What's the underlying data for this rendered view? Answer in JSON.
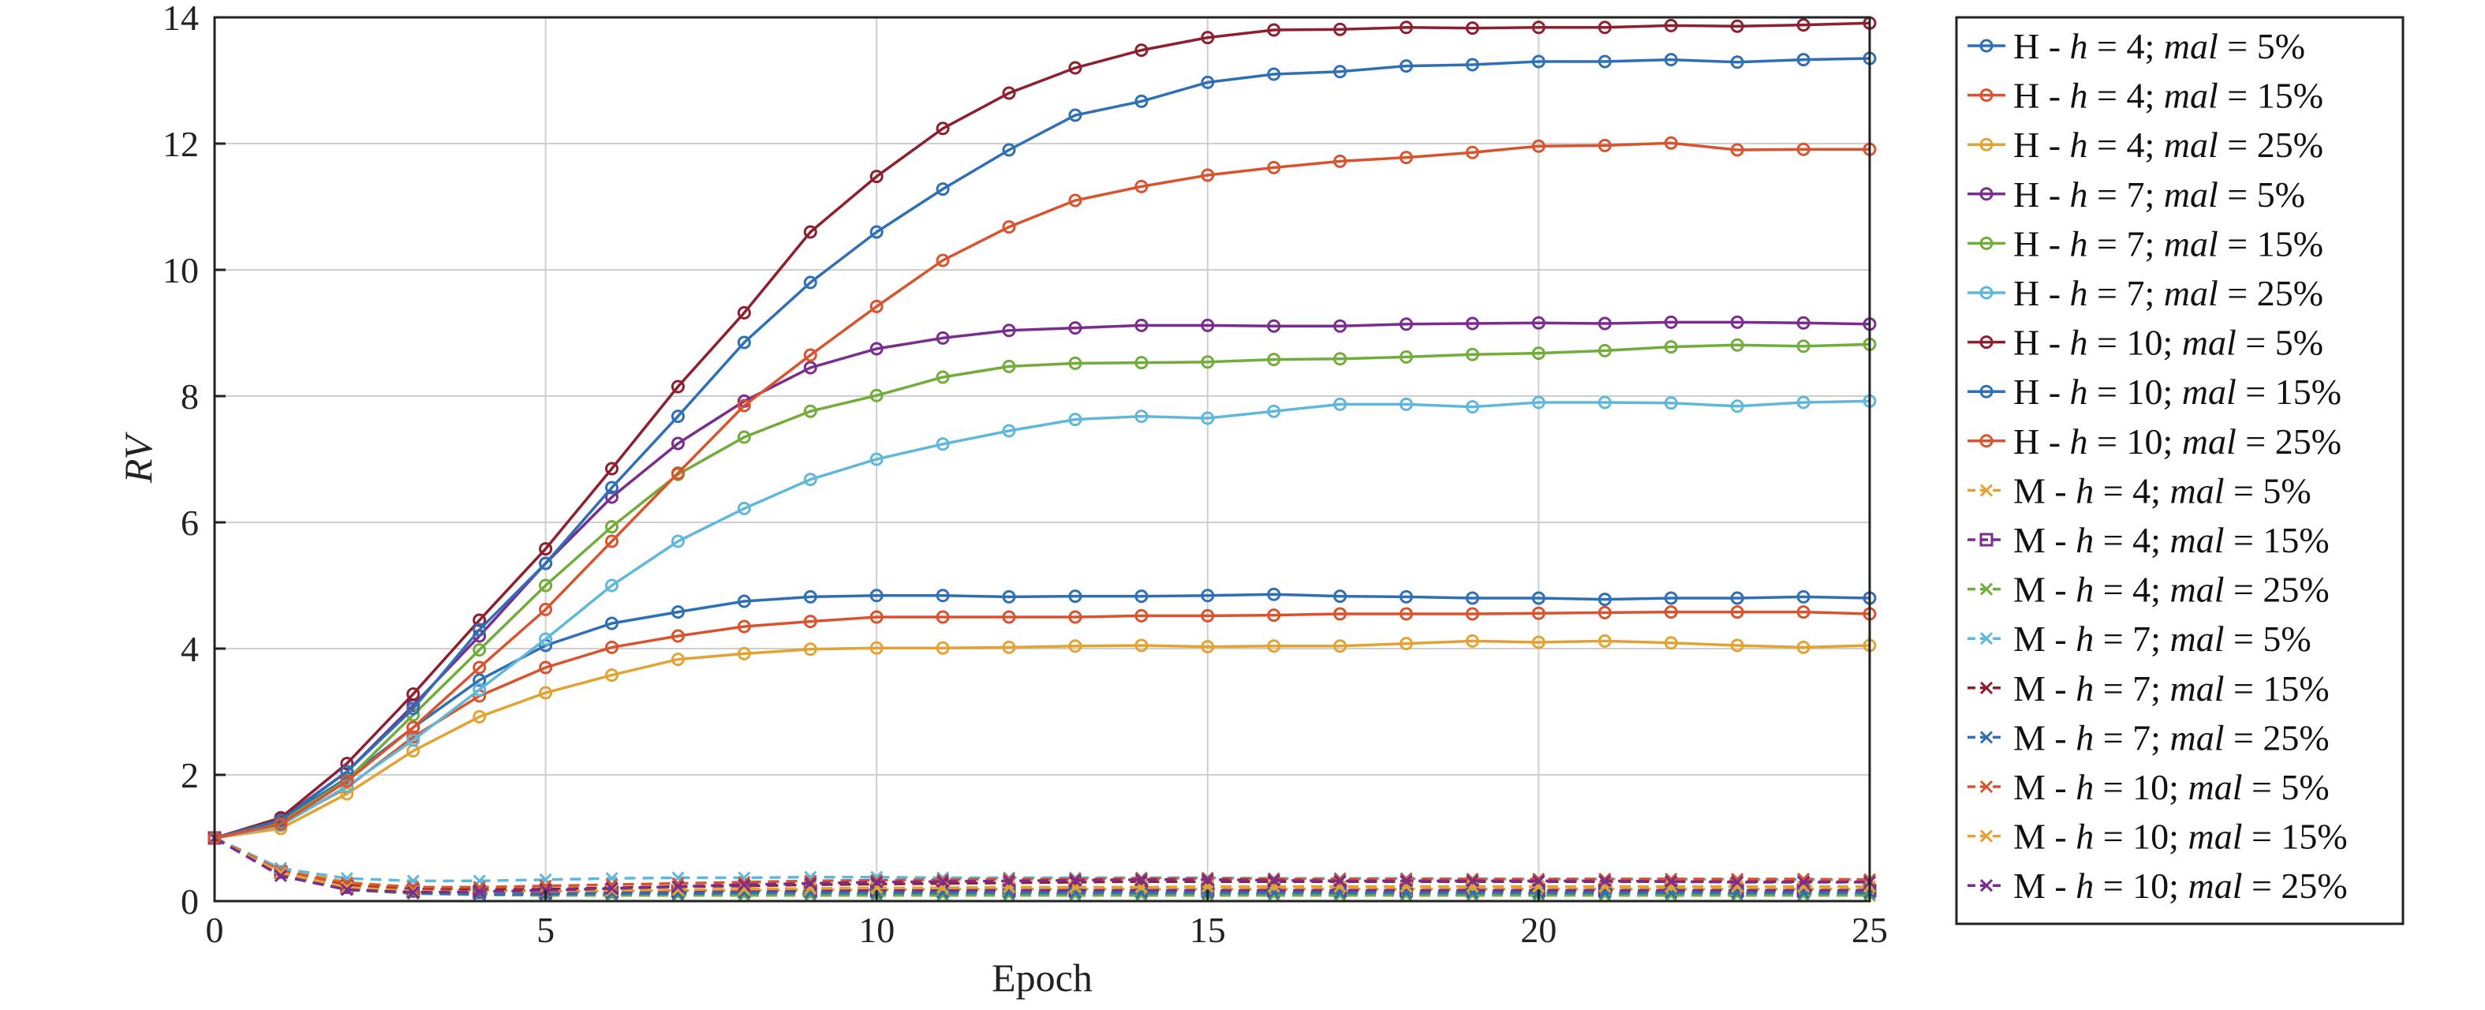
{
  "chart_data": {
    "type": "line",
    "xlabel": "Epoch",
    "ylabel": "RV",
    "xlim": [
      0,
      25
    ],
    "ylim": [
      0,
      14
    ],
    "xticks": [
      0,
      5,
      10,
      15,
      20,
      25
    ],
    "yticks": [
      0,
      2,
      4,
      6,
      8,
      10,
      12,
      14
    ],
    "grid": true,
    "legend_position": "right-outside",
    "x": [
      0,
      1,
      2,
      3,
      4,
      5,
      6,
      7,
      8,
      9,
      10,
      11,
      12,
      13,
      14,
      15,
      16,
      17,
      18,
      19,
      20,
      21,
      22,
      23,
      24,
      25
    ],
    "series": [
      {
        "name": "H - h = 4; mal = 5%",
        "group": "H",
        "h": "4",
        "mal": "5%",
        "color": "#2f6fb5",
        "marker": "o",
        "dash": "solid",
        "values": [
          1,
          1.28,
          1.95,
          2.75,
          3.5,
          4.05,
          4.4,
          4.58,
          4.75,
          4.82,
          4.84,
          4.84,
          4.82,
          4.83,
          4.83,
          4.84,
          4.86,
          4.83,
          4.82,
          4.8,
          4.8,
          4.78,
          4.8,
          4.8,
          4.82,
          4.8
        ]
      },
      {
        "name": "H - h = 4; mal = 15%",
        "group": "H",
        "h": "4",
        "mal": "15%",
        "color": "#d9542e",
        "marker": "o",
        "dash": "solid",
        "values": [
          1,
          1.22,
          1.8,
          2.6,
          3.25,
          3.7,
          4.02,
          4.2,
          4.35,
          4.43,
          4.5,
          4.5,
          4.5,
          4.5,
          4.52,
          4.52,
          4.53,
          4.55,
          4.55,
          4.55,
          4.56,
          4.57,
          4.58,
          4.58,
          4.58,
          4.55
        ]
      },
      {
        "name": "H - h = 4; mal = 25%",
        "group": "H",
        "h": "4",
        "mal": "25%",
        "color": "#e3a332",
        "marker": "o",
        "dash": "solid",
        "values": [
          1,
          1.15,
          1.7,
          2.38,
          2.92,
          3.3,
          3.58,
          3.83,
          3.92,
          3.99,
          4.01,
          4.01,
          4.02,
          4.04,
          4.05,
          4.03,
          4.04,
          4.04,
          4.08,
          4.12,
          4.1,
          4.12,
          4.09,
          4.05,
          4.02,
          4.05
        ]
      },
      {
        "name": "H - h = 7; mal = 5%",
        "group": "H",
        "h": "7",
        "mal": "5%",
        "color": "#7a2d8e",
        "marker": "o",
        "dash": "solid",
        "values": [
          1,
          1.3,
          2.05,
          3.1,
          4.2,
          5.35,
          6.4,
          7.25,
          7.92,
          8.45,
          8.75,
          8.92,
          9.04,
          9.08,
          9.12,
          9.12,
          9.11,
          9.11,
          9.14,
          9.15,
          9.16,
          9.15,
          9.17,
          9.17,
          9.16,
          9.14
        ]
      },
      {
        "name": "H - h = 7; mal = 15%",
        "group": "H",
        "h": "7",
        "mal": "15%",
        "color": "#72ac3a",
        "marker": "o",
        "dash": "solid",
        "values": [
          1,
          1.25,
          1.92,
          2.95,
          3.98,
          5.0,
          5.93,
          6.76,
          7.35,
          7.76,
          8.01,
          8.3,
          8.47,
          8.52,
          8.53,
          8.54,
          8.58,
          8.59,
          8.62,
          8.66,
          8.68,
          8.72,
          8.78,
          8.81,
          8.79,
          8.82
        ]
      },
      {
        "name": "H - h = 7; mal = 25%",
        "group": "H",
        "h": "7",
        "mal": "25%",
        "color": "#5fb8dc",
        "marker": "o",
        "dash": "solid",
        "values": [
          1,
          1.2,
          1.82,
          2.55,
          3.35,
          4.15,
          5.0,
          5.7,
          6.22,
          6.68,
          7.0,
          7.24,
          7.45,
          7.63,
          7.68,
          7.65,
          7.76,
          7.87,
          7.87,
          7.83,
          7.9,
          7.9,
          7.89,
          7.84,
          7.9,
          7.92
        ]
      },
      {
        "name": "H - h = 10; mal = 5%",
        "group": "H",
        "h": "10",
        "mal": "5%",
        "color": "#8e1f2f",
        "marker": "o",
        "dash": "solid",
        "values": [
          1,
          1.32,
          2.18,
          3.28,
          4.45,
          5.58,
          6.85,
          8.15,
          9.32,
          10.6,
          11.48,
          12.24,
          12.8,
          13.2,
          13.48,
          13.68,
          13.8,
          13.81,
          13.84,
          13.83,
          13.84,
          13.84,
          13.87,
          13.86,
          13.88,
          13.91
        ]
      },
      {
        "name": "H - h = 10; mal = 15%",
        "group": "H",
        "h": "10",
        "mal": "15%",
        "color": "#2f6fb5",
        "marker": "o",
        "dash": "solid",
        "values": [
          1,
          1.28,
          2.05,
          3.05,
          4.3,
          5.35,
          6.55,
          7.68,
          8.85,
          9.8,
          10.6,
          11.28,
          11.9,
          12.45,
          12.67,
          12.97,
          13.1,
          13.14,
          13.23,
          13.25,
          13.3,
          13.3,
          13.33,
          13.29,
          13.33,
          13.35
        ]
      },
      {
        "name": "H - h = 10; mal = 25%",
        "group": "H",
        "h": "10",
        "mal": "25%",
        "color": "#d9542e",
        "marker": "o",
        "dash": "solid",
        "values": [
          1,
          1.22,
          1.9,
          2.75,
          3.7,
          4.62,
          5.7,
          6.78,
          7.85,
          8.65,
          9.42,
          10.15,
          10.68,
          11.1,
          11.32,
          11.5,
          11.62,
          11.72,
          11.78,
          11.86,
          11.96,
          11.97,
          12.01,
          11.9,
          11.91,
          11.91
        ]
      },
      {
        "name": "M - h = 4; mal = 5%",
        "group": "M",
        "h": "4",
        "mal": "5%",
        "color": "#e3a332",
        "marker": "x",
        "dash": "dashed",
        "values": [
          1,
          0.52,
          0.3,
          0.22,
          0.18,
          0.16,
          0.16,
          0.17,
          0.17,
          0.18,
          0.18,
          0.19,
          0.19,
          0.19,
          0.19,
          0.19,
          0.19,
          0.19,
          0.19,
          0.19,
          0.19,
          0.19,
          0.19,
          0.19,
          0.19,
          0.19
        ]
      },
      {
        "name": "M - h = 4; mal = 15%",
        "group": "M",
        "h": "4",
        "mal": "15%",
        "color": "#7a2d8e",
        "marker": "s",
        "dash": "dashed",
        "values": [
          1,
          0.46,
          0.22,
          0.16,
          0.14,
          0.14,
          0.15,
          0.16,
          0.16,
          0.16,
          0.17,
          0.17,
          0.17,
          0.17,
          0.17,
          0.17,
          0.17,
          0.17,
          0.17,
          0.17,
          0.17,
          0.17,
          0.17,
          0.17,
          0.17,
          0.17
        ]
      },
      {
        "name": "M - h = 4; mal = 25%",
        "group": "M",
        "h": "4",
        "mal": "25%",
        "color": "#72ac3a",
        "marker": "x",
        "dash": "dashed",
        "values": [
          1,
          0.44,
          0.18,
          0.12,
          0.1,
          0.09,
          0.09,
          0.09,
          0.09,
          0.09,
          0.09,
          0.09,
          0.09,
          0.09,
          0.09,
          0.09,
          0.09,
          0.09,
          0.09,
          0.09,
          0.09,
          0.09,
          0.09,
          0.09,
          0.09,
          0.09
        ]
      },
      {
        "name": "M - h = 7; mal = 5%",
        "group": "M",
        "h": "7",
        "mal": "5%",
        "color": "#5fb8dc",
        "marker": "x",
        "dash": "dashed",
        "values": [
          1,
          0.52,
          0.36,
          0.32,
          0.32,
          0.34,
          0.36,
          0.37,
          0.37,
          0.38,
          0.38,
          0.37,
          0.37,
          0.37,
          0.37,
          0.37,
          0.36,
          0.36,
          0.36,
          0.35,
          0.35,
          0.35,
          0.35,
          0.34,
          0.34,
          0.34
        ]
      },
      {
        "name": "M - h = 7; mal = 15%",
        "group": "M",
        "h": "7",
        "mal": "15%",
        "color": "#8e1f2f",
        "marker": "x",
        "dash": "dashed",
        "values": [
          1,
          0.45,
          0.25,
          0.19,
          0.18,
          0.19,
          0.21,
          0.23,
          0.24,
          0.26,
          0.27,
          0.28,
          0.29,
          0.3,
          0.31,
          0.31,
          0.31,
          0.31,
          0.31,
          0.31,
          0.31,
          0.31,
          0.31,
          0.31,
          0.31,
          0.31
        ]
      },
      {
        "name": "M - h = 7; mal = 25%",
        "group": "M",
        "h": "7",
        "mal": "25%",
        "color": "#2f6fb5",
        "marker": "x",
        "dash": "dashed",
        "values": [
          1,
          0.44,
          0.2,
          0.13,
          0.11,
          0.11,
          0.12,
          0.12,
          0.13,
          0.13,
          0.13,
          0.13,
          0.13,
          0.13,
          0.13,
          0.13,
          0.13,
          0.13,
          0.13,
          0.13,
          0.13,
          0.13,
          0.13,
          0.13,
          0.13,
          0.13
        ]
      },
      {
        "name": "M - h = 10; mal = 5%",
        "group": "M",
        "h": "10",
        "mal": "5%",
        "color": "#d9542e",
        "marker": "x",
        "dash": "dashed",
        "values": [
          1,
          0.48,
          0.28,
          0.22,
          0.22,
          0.24,
          0.26,
          0.28,
          0.3,
          0.32,
          0.33,
          0.34,
          0.35,
          0.35,
          0.36,
          0.36,
          0.35,
          0.35,
          0.35,
          0.35,
          0.35,
          0.35,
          0.35,
          0.35,
          0.35,
          0.34
        ]
      },
      {
        "name": "M - h = 10; mal = 15%",
        "group": "M",
        "h": "10",
        "mal": "15%",
        "color": "#e3a332",
        "marker": "x",
        "dash": "dashed",
        "values": [
          1,
          0.45,
          0.22,
          0.16,
          0.15,
          0.16,
          0.17,
          0.18,
          0.19,
          0.2,
          0.21,
          0.21,
          0.22,
          0.22,
          0.22,
          0.23,
          0.23,
          0.23,
          0.23,
          0.23,
          0.23,
          0.23,
          0.23,
          0.23,
          0.23,
          0.23
        ]
      },
      {
        "name": "M - h = 10; mal = 25%",
        "group": "M",
        "h": "10",
        "mal": "25%",
        "color": "#7a2d8e",
        "marker": "x",
        "dash": "dashed",
        "values": [
          1,
          0.4,
          0.18,
          0.14,
          0.15,
          0.17,
          0.2,
          0.23,
          0.26,
          0.28,
          0.3,
          0.31,
          0.32,
          0.33,
          0.34,
          0.34,
          0.33,
          0.32,
          0.32,
          0.32,
          0.32,
          0.32,
          0.31,
          0.3,
          0.3,
          0.3
        ]
      }
    ]
  }
}
